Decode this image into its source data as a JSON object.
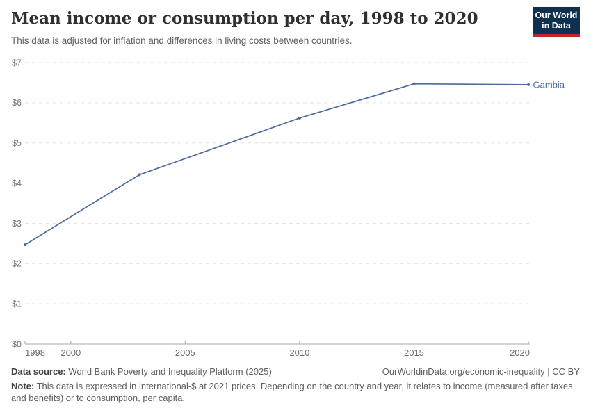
{
  "header": {
    "title": "Mean income or consumption per day, 1998 to 2020",
    "subtitle": "This data is adjusted for inflation and differences in living costs between countries.",
    "logo": {
      "line1": "Our World",
      "line2": "in Data"
    }
  },
  "chart_data": {
    "type": "line",
    "title": "Mean income or consumption per day, 1998 to 2020",
    "x": [
      1998,
      2003,
      2010,
      2015,
      2020
    ],
    "series": [
      {
        "name": "Gambia",
        "values": [
          2.47,
          4.21,
          5.62,
          6.47,
          6.45
        ]
      }
    ],
    "xlim": [
      1998,
      2020
    ],
    "ylim": [
      0,
      7
    ],
    "x_ticks": [
      1998,
      2000,
      2005,
      2010,
      2015,
      2020
    ],
    "y_ticks": [
      0,
      1,
      2,
      3,
      4,
      5,
      6,
      7
    ],
    "y_tick_prefix": "$",
    "grid": "horizontal-dashed",
    "legend_position": "end-of-line",
    "colors": {
      "line": "#4C6A9C",
      "entity_label": "#4C6A9C",
      "grid": "#e2e2e2",
      "axis": "#a8a8a8",
      "y_tick_label": "#757575",
      "x_tick_label": "#6e6e6e"
    }
  },
  "footer": {
    "datasource_label": "Data source:",
    "datasource_text": " World Bank Poverty and Inequality Platform (2025)",
    "attribution": "OurWorldinData.org/economic-inequality | CC BY",
    "note_label": "Note:",
    "note_text": " This data is expressed in international-$ at 2021 prices. Depending on the country and year, it relates to income (measured after taxes and benefits) or to consumption, per capita."
  }
}
